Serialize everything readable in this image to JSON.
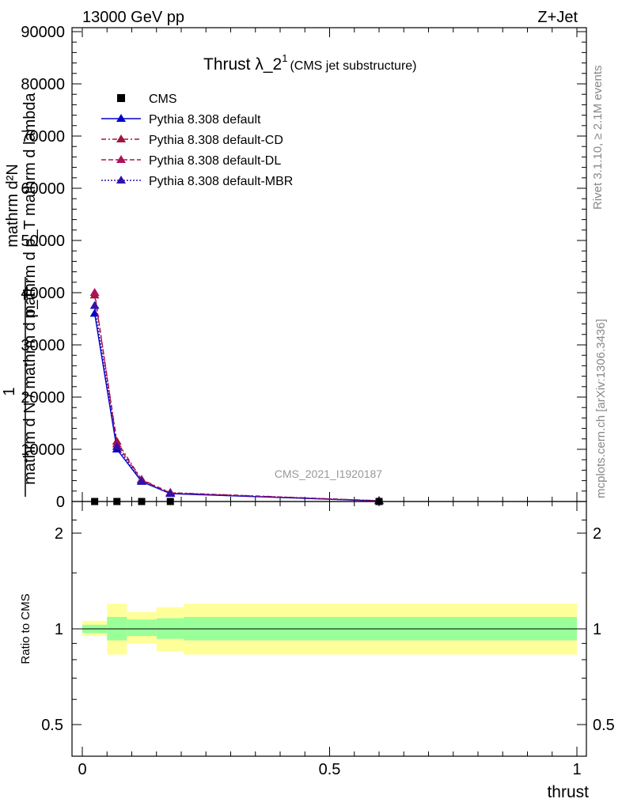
{
  "header": {
    "left_label": "13000 GeV pp",
    "right_label": "Z+Jet",
    "side_label_top": "Rivet 3.1.10, ≥ 2.1M events",
    "side_label_bottom": "mcplots.cern.ch [arXiv:1306.3436]",
    "watermark": "CMS_2021_I1920187"
  },
  "chart_data": [
    {
      "type": "line",
      "title_main": "Thrust λ_2",
      "title_sup": "1",
      "title_sub": "(CMS jet substructure)",
      "ylabel_top": "mathrm d²N",
      "ylabel_mid": "mathrm d p_T mathrm d lambda",
      "ylabel_frac_num": "1",
      "ylabel_frac_den": "mathrm d N / mathrm d p_T",
      "xlim": [
        0,
        1
      ],
      "ylim": [
        0,
        90000
      ],
      "yticks": [
        0,
        10000,
        20000,
        30000,
        40000,
        50000,
        60000,
        70000,
        80000,
        90000
      ],
      "ytick_labels": [
        "0",
        "10000",
        "20000",
        "30000",
        "40000",
        "50000",
        "60000",
        "70000",
        "80000",
        "90000"
      ],
      "data_series": {
        "name": "CMS",
        "x": [
          0.025,
          0.07,
          0.12,
          0.178,
          0.6
        ],
        "y": [
          0,
          0,
          0,
          0,
          0
        ],
        "color": "#000000"
      },
      "series": [
        {
          "name": "Pythia 8.308 default",
          "color": "#0000cc",
          "style": "solid",
          "x": [
            0.025,
            0.07,
            0.12,
            0.178,
            0.6
          ],
          "y": [
            36000,
            10000,
            3800,
            1500,
            100
          ]
        },
        {
          "name": "Pythia 8.308 default-CD",
          "color": "#a0153e",
          "style": "dashdot",
          "x": [
            0.025,
            0.07,
            0.12,
            0.178,
            0.6
          ],
          "y": [
            39500,
            11500,
            4200,
            1700,
            150
          ]
        },
        {
          "name": "Pythia 8.308 default-DL",
          "color": "#b0105a",
          "style": "dashed",
          "x": [
            0.025,
            0.07,
            0.12,
            0.178,
            0.6
          ],
          "y": [
            40000,
            11000,
            4100,
            1650,
            140
          ]
        },
        {
          "name": "Pythia 8.308 default-MBR",
          "color": "#3311aa",
          "style": "dotted",
          "x": [
            0.025,
            0.07,
            0.12,
            0.178,
            0.6
          ],
          "y": [
            37500,
            10500,
            3900,
            1550,
            120
          ]
        }
      ],
      "legend_position": "top-left"
    },
    {
      "type": "area",
      "ylabel": "Ratio to CMS",
      "xlabel": "thrust",
      "xlim": [
        0,
        1
      ],
      "ylim": [
        0.4,
        2.3
      ],
      "scale": "log",
      "xticks": [
        0,
        0.5,
        1
      ],
      "xtick_labels": [
        "0",
        "0.5",
        "1"
      ],
      "yticks": [
        0.5,
        1,
        2
      ],
      "ytick_labels": [
        "0.5",
        "1",
        "2"
      ],
      "bands": [
        {
          "x_from": 0.0,
          "x_to": 0.05,
          "inner": [
            0.97,
            1.03
          ],
          "outer": [
            0.95,
            1.06
          ]
        },
        {
          "x_from": 0.05,
          "x_to": 0.09,
          "inner": [
            0.92,
            1.09
          ],
          "outer": [
            0.83,
            1.2
          ]
        },
        {
          "x_from": 0.09,
          "x_to": 0.15,
          "inner": [
            0.95,
            1.07
          ],
          "outer": [
            0.9,
            1.13
          ]
        },
        {
          "x_from": 0.15,
          "x_to": 0.205,
          "inner": [
            0.93,
            1.08
          ],
          "outer": [
            0.85,
            1.17
          ]
        },
        {
          "x_from": 0.205,
          "x_to": 1.0,
          "inner": [
            0.92,
            1.09
          ],
          "outer": [
            0.83,
            1.2
          ]
        }
      ],
      "colors": {
        "inner": "#99ff99",
        "outer": "#ffff99"
      }
    }
  ]
}
